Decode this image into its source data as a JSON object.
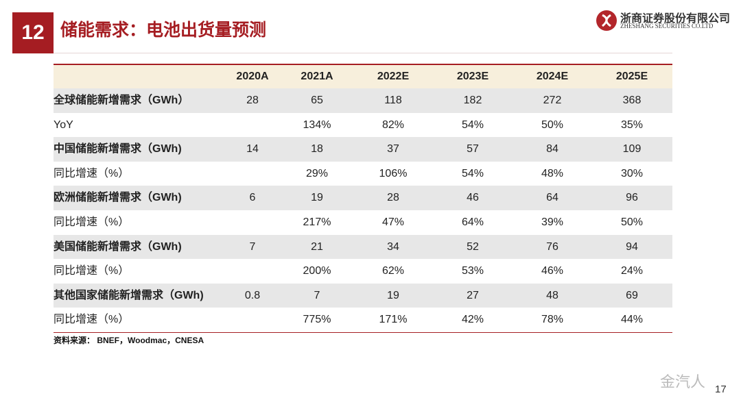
{
  "header": {
    "number": "12",
    "title": "储能需求：电池出货量预测"
  },
  "logo": {
    "name": "浙商证券股份有限公司",
    "english": "ZHESHANG SECURITIES CO.LTD"
  },
  "table": {
    "columns": [
      "2020A",
      "2021A",
      "2022E",
      "2023E",
      "2024E",
      "2025E"
    ],
    "rows": [
      [
        "全球储能新增需求（GWh）",
        "28",
        "65",
        "118",
        "182",
        "272",
        "368"
      ],
      [
        "YoY",
        null,
        "134%",
        "82%",
        "54%",
        "50%",
        "35%"
      ],
      [
        "中国储能新增需求（GWh)",
        "14",
        "18",
        "37",
        "57",
        "84",
        "109"
      ],
      [
        "同比增速（%）",
        null,
        "29%",
        "106%",
        "54%",
        "48%",
        "30%"
      ],
      [
        "欧洲储能新增需求（GWh)",
        "6",
        "19",
        "28",
        "46",
        "64",
        "96"
      ],
      [
        "同比增速（%）",
        null,
        "217%",
        "47%",
        "64%",
        "39%",
        "50%"
      ],
      [
        "美国储能新增需求（GWh)",
        "7",
        "21",
        "34",
        "52",
        "76",
        "94"
      ],
      [
        "同比增速（%）",
        null,
        "200%",
        "62%",
        "53%",
        "46%",
        "24%"
      ],
      [
        "其他国家储能新增需求（GWh)",
        "0.8",
        "7",
        "19",
        "27",
        "48",
        "69"
      ],
      [
        "同比增速（%）",
        null,
        "775%",
        "171%",
        "42%",
        "78%",
        "44%"
      ]
    ]
  },
  "source": "资料来源： BNEF，Woodmac，CNESA",
  "watermark": "金汽人",
  "page_number": "17"
}
